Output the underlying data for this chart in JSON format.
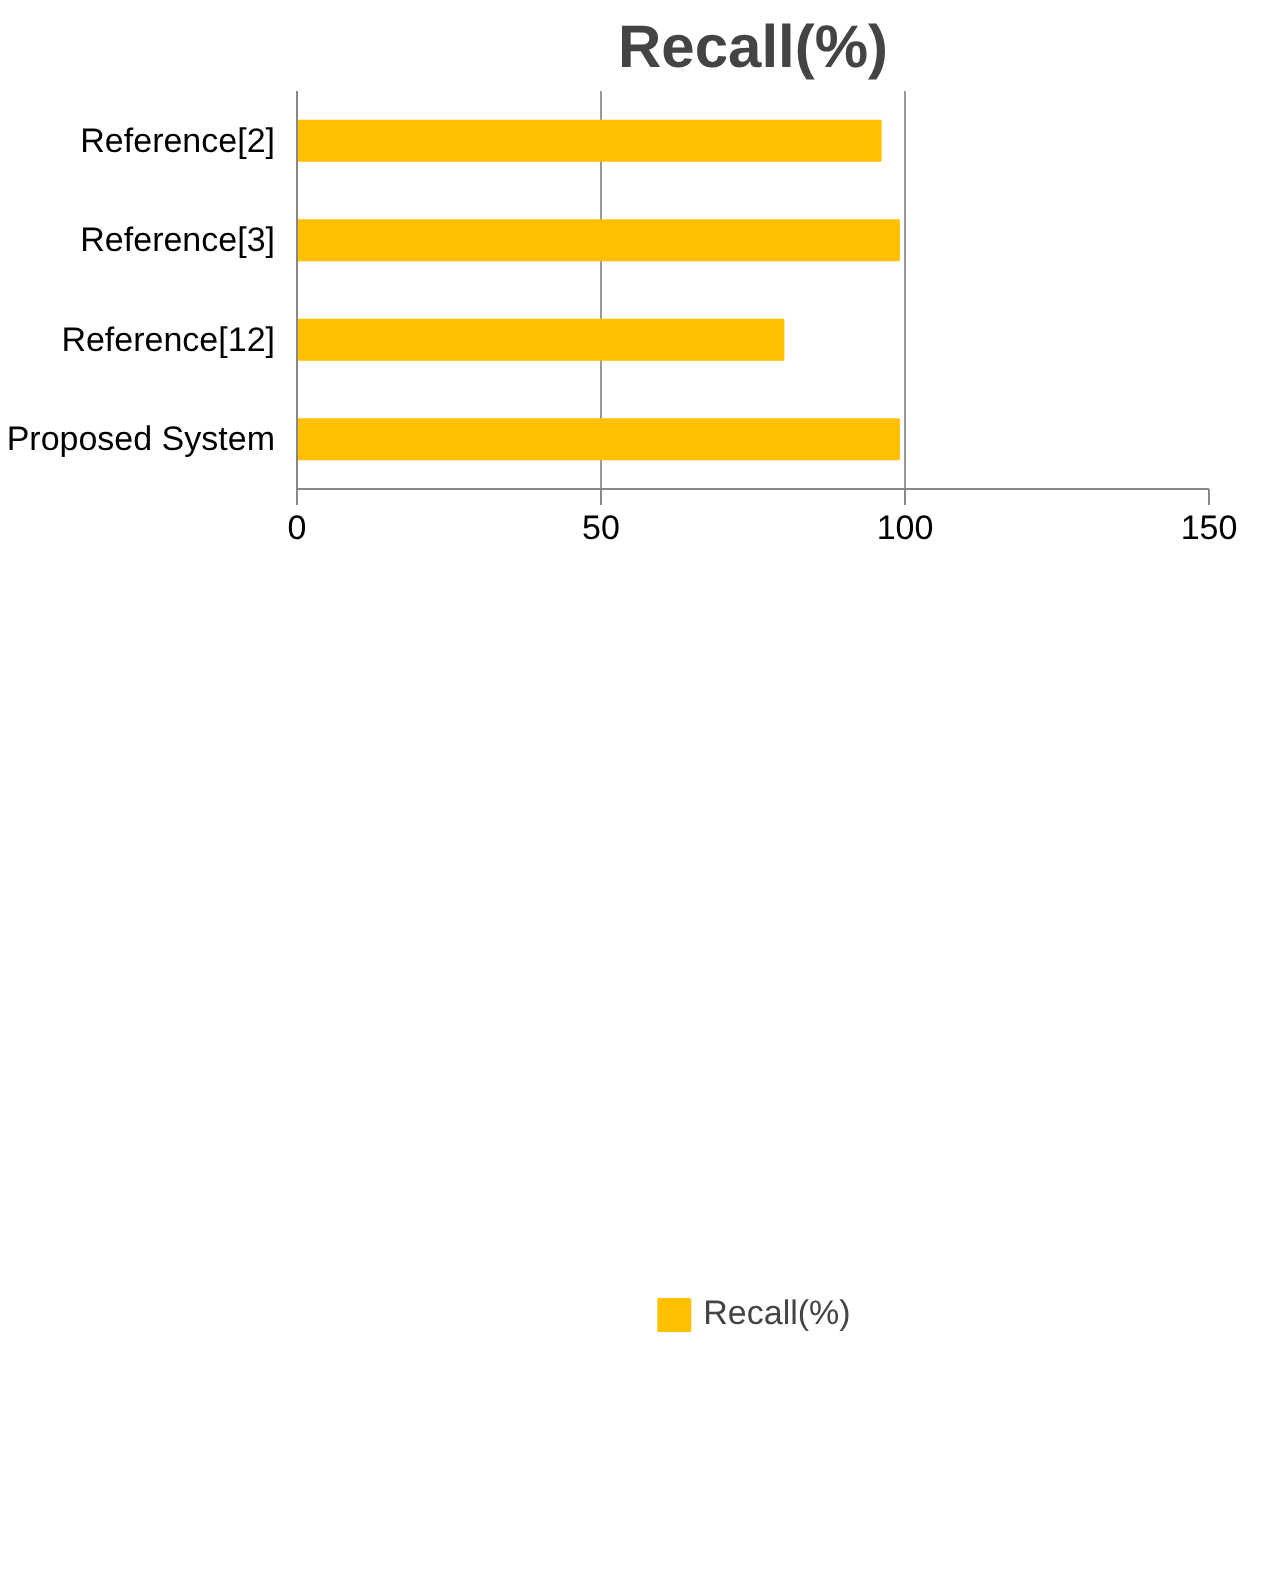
{
  "chart_data": {
    "type": "bar",
    "orientation": "horizontal",
    "title": "Recall(%)",
    "categories": [
      "Reference[2]",
      "Reference[3]",
      "Reference[12]",
      "Proposed System"
    ],
    "series": [
      {
        "name": "Recall(%)",
        "color": "#ffc000",
        "values": [
          96,
          99,
          80,
          99
        ]
      }
    ],
    "xlim": [
      0,
      150
    ],
    "xticks": [
      0,
      50,
      100,
      150
    ],
    "grid": "x",
    "legend": "bottom"
  }
}
